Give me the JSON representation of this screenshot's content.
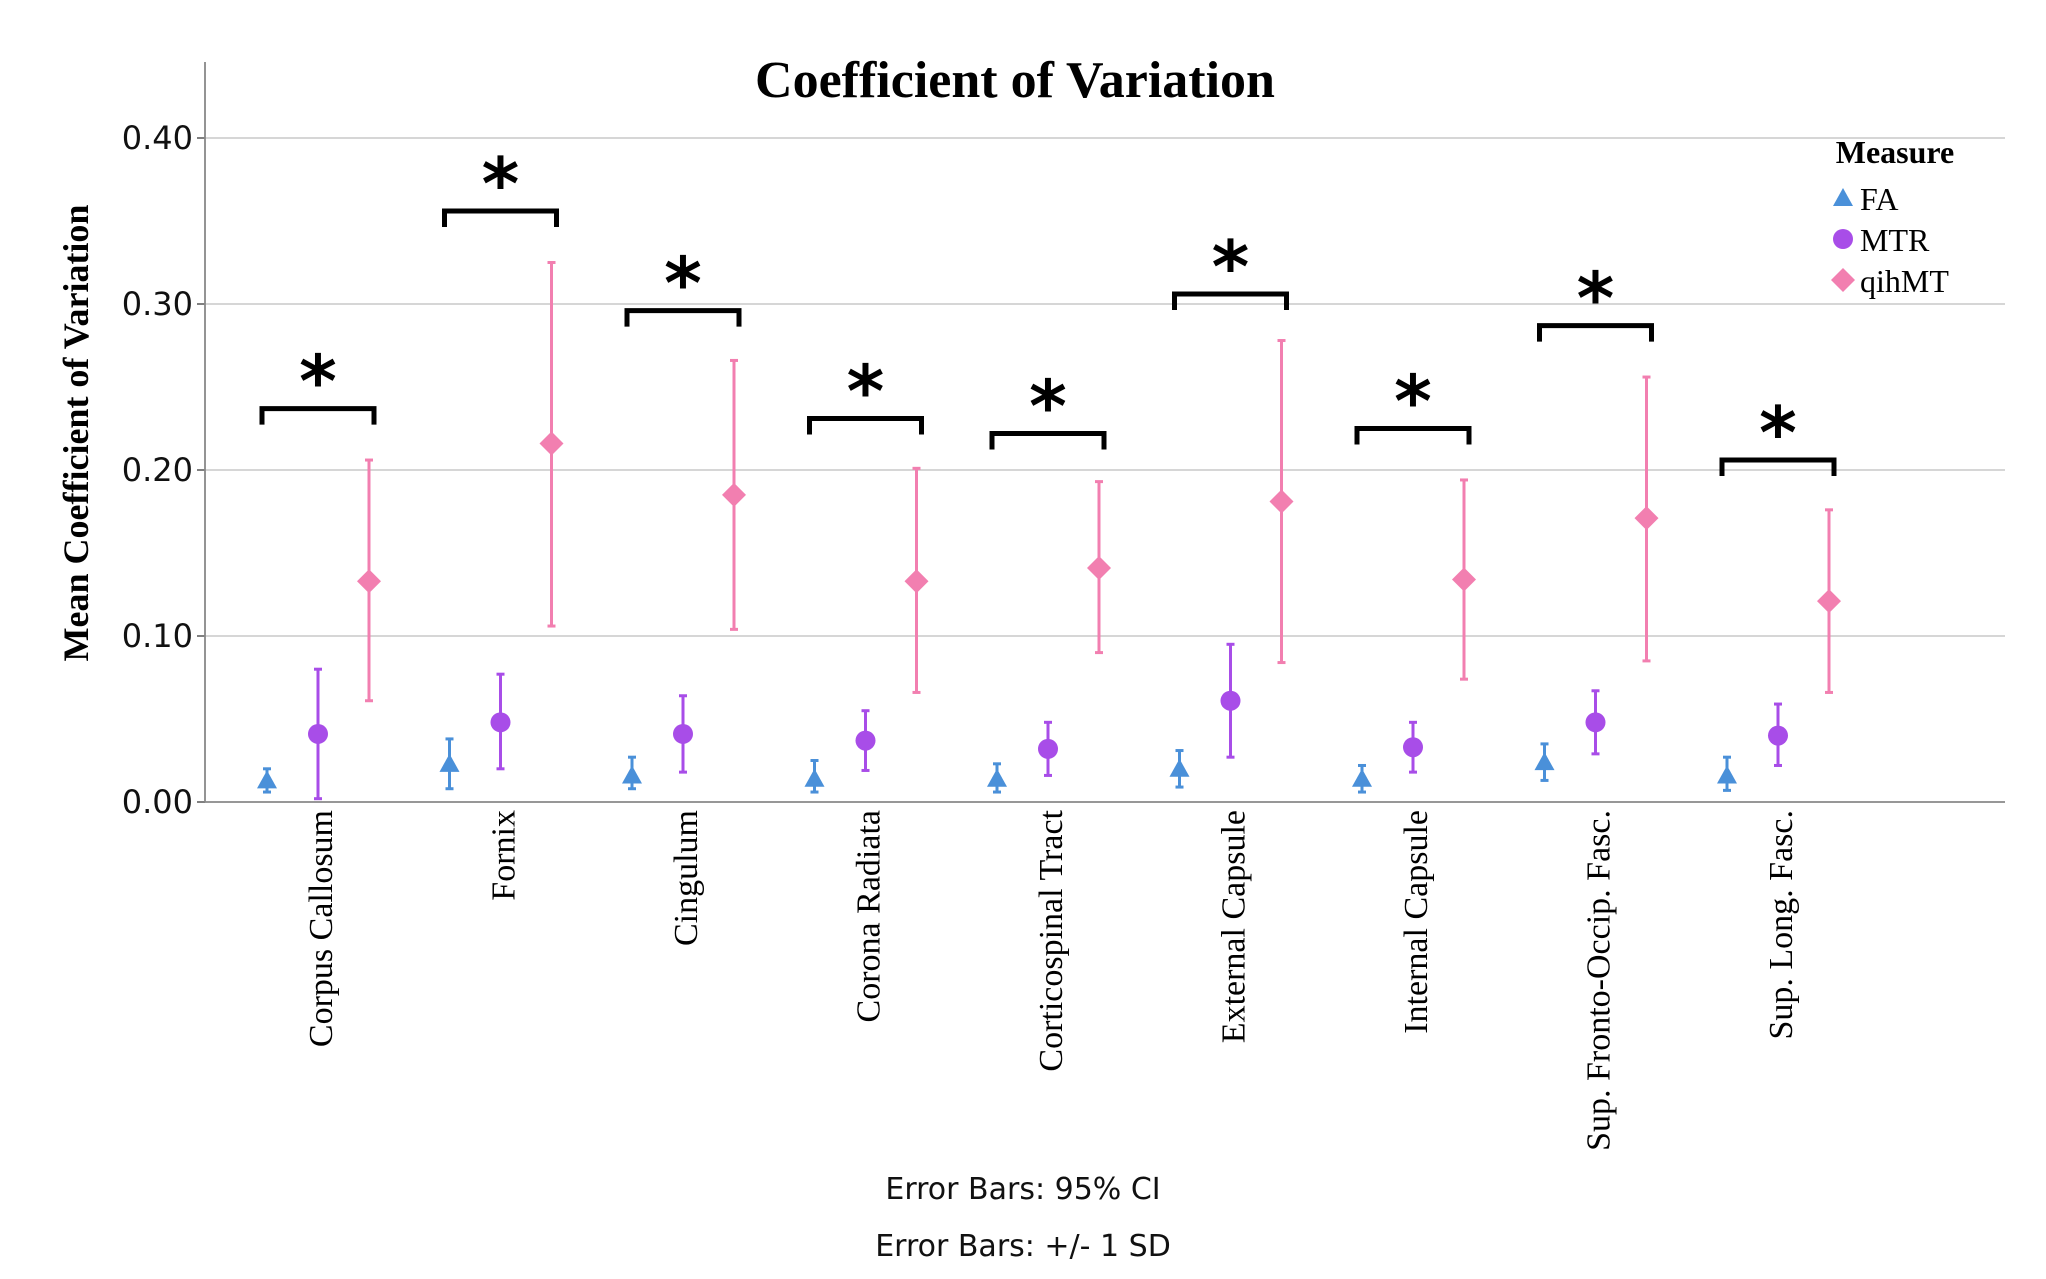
{
  "chart_data": {
    "type": "scatter",
    "title": "Coefficient of Variation",
    "ylabel": "Mean Coefficient of Variation",
    "xlabel": "",
    "ylim": [
      0,
      0.4
    ],
    "yticks": [
      "0.00",
      "0.10",
      "0.20",
      "0.30",
      "0.40"
    ],
    "ytick_values": [
      0,
      0.1,
      0.2,
      0.3,
      0.4
    ],
    "grid": true,
    "legend": {
      "title": "Measure",
      "placement": "top-right"
    },
    "categories": [
      "Corpus Callosum",
      "Fornix",
      "Cingulum",
      "Corona Radiata",
      "Corticospinal Tract",
      "External Capsule",
      "Internal Capsule",
      "Sup. Fronto-Occip. Fasc.",
      "Sup. Long. Fasc."
    ],
    "series": [
      {
        "name": "FA",
        "marker": "triangle",
        "color": "#4a90d9",
        "values": [
          0.013,
          0.023,
          0.016,
          0.014,
          0.014,
          0.02,
          0.014,
          0.024,
          0.016
        ],
        "lower": [
          0.006,
          0.008,
          0.008,
          0.006,
          0.006,
          0.009,
          0.006,
          0.013,
          0.007
        ],
        "upper": [
          0.02,
          0.038,
          0.027,
          0.025,
          0.023,
          0.031,
          0.022,
          0.035,
          0.027
        ]
      },
      {
        "name": "MTR",
        "marker": "circle",
        "color": "#a84de8",
        "values": [
          0.041,
          0.048,
          0.041,
          0.037,
          0.032,
          0.061,
          0.033,
          0.048,
          0.04
        ],
        "lower": [
          0.002,
          0.02,
          0.018,
          0.019,
          0.016,
          0.027,
          0.018,
          0.029,
          0.022
        ],
        "upper": [
          0.08,
          0.077,
          0.064,
          0.055,
          0.048,
          0.095,
          0.048,
          0.067,
          0.059
        ]
      },
      {
        "name": "qihMT",
        "marker": "diamond",
        "color": "#f27fb0",
        "values": [
          0.133,
          0.216,
          0.185,
          0.133,
          0.141,
          0.181,
          0.134,
          0.171,
          0.121
        ],
        "lower": [
          0.061,
          0.106,
          0.104,
          0.066,
          0.09,
          0.084,
          0.074,
          0.085,
          0.066
        ],
        "upper": [
          0.206,
          0.325,
          0.266,
          0.201,
          0.193,
          0.278,
          0.194,
          0.256,
          0.176
        ]
      }
    ],
    "significance": [
      {
        "category": "Corpus Callosum",
        "level": 0.237,
        "label": "*"
      },
      {
        "category": "Fornix",
        "level": 0.356,
        "label": "*"
      },
      {
        "category": "Cingulum",
        "level": 0.296,
        "label": "*"
      },
      {
        "category": "Corona Radiata",
        "level": 0.231,
        "label": "*"
      },
      {
        "category": "Corticospinal Tract",
        "level": 0.222,
        "label": "*"
      },
      {
        "category": "External Capsule",
        "level": 0.306,
        "label": "*"
      },
      {
        "category": "Internal Capsule",
        "level": 0.225,
        "label": "*"
      },
      {
        "category": "Sup. Fronto-Occip. Fasc.",
        "level": 0.287,
        "label": "*"
      },
      {
        "category": "Sup. Long. Fasc.",
        "level": 0.206,
        "label": "*"
      }
    ],
    "footnotes": [
      "Error Bars: 95% CI",
      "Error Bars: +/- 1 SD"
    ]
  }
}
